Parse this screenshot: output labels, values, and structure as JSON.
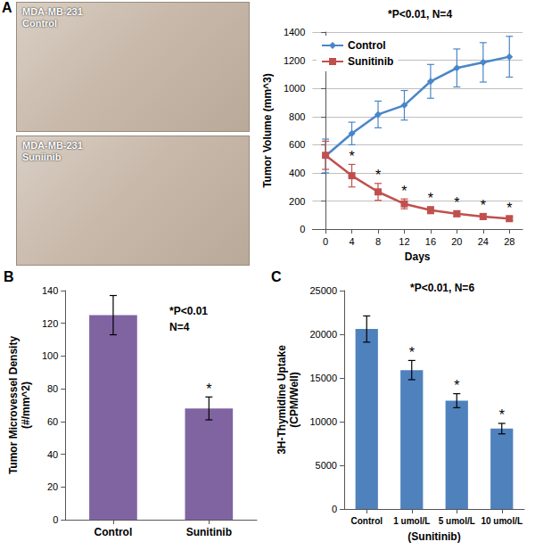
{
  "photos": {
    "panel_label": "A",
    "items": [
      {
        "lines": [
          "MDA-MB-231",
          "Control"
        ]
      },
      {
        "lines": [
          "MDA-MB-231",
          "Suniinib"
        ]
      }
    ]
  },
  "chart_data": [
    {
      "panel_label": "",
      "type": "line",
      "x_label": "Days",
      "y_label": "Tumor Volume (mm^3)",
      "annotation": "*P<0.01, N=4",
      "x": [
        0,
        4,
        8,
        12,
        16,
        20,
        24,
        28
      ],
      "series": [
        {
          "name": "Control",
          "color": "#4a86c8",
          "marker": "diamond",
          "values": [
            520,
            680,
            815,
            880,
            1050,
            1145,
            1185,
            1225
          ],
          "errors": [
            120,
            80,
            95,
            105,
            120,
            135,
            140,
            145
          ]
        },
        {
          "name": "Sunitinib",
          "color": "#c0504d",
          "marker": "square",
          "values": [
            525,
            380,
            265,
            180,
            135,
            110,
            90,
            75
          ],
          "errors": [
            100,
            80,
            60,
            35,
            25,
            20,
            20,
            15
          ],
          "significance": [
            null,
            "*",
            "*",
            "*",
            "*",
            "*",
            "*",
            "*"
          ]
        }
      ],
      "xlim": [
        -2,
        30
      ],
      "xticks": [
        0,
        4,
        8,
        12,
        16,
        20,
        24,
        28
      ],
      "ylim": [
        0,
        1400
      ],
      "yticks": [
        0,
        200,
        400,
        600,
        800,
        1000,
        1200,
        1400
      ],
      "grid": true,
      "legend": "upper left"
    },
    {
      "panel_label": "B",
      "type": "bar",
      "y_label": "Tumor Microvessel Density\n(#/mm^2)",
      "annotation": "*P<0.01\nN=4",
      "categories": [
        "Control",
        "Sunitinib"
      ],
      "values": [
        125,
        68
      ],
      "errors": [
        12,
        7
      ],
      "significance": [
        null,
        "*"
      ],
      "color": "#8064a2",
      "ylim": [
        0,
        140
      ],
      "yticks": [
        0,
        20,
        40,
        60,
        80,
        100,
        120,
        140
      ],
      "grid": false
    },
    {
      "panel_label": "C",
      "type": "bar",
      "x_label": "(Sunitinib)",
      "y_label": "3H-Thymidine Uptake\n(CPM/Well)",
      "annotation": "*P<0.01, N=6",
      "categories": [
        "Control",
        "1 umol/L",
        "5 umol/L",
        "10 umol/L"
      ],
      "values": [
        20600,
        15900,
        12400,
        9200
      ],
      "errors": [
        1500,
        1100,
        800,
        600
      ],
      "significance": [
        null,
        "*",
        "*",
        "*"
      ],
      "color": "#4f81bd",
      "ylim": [
        0,
        25000
      ],
      "yticks": [
        0,
        5000,
        10000,
        15000,
        20000,
        25000
      ],
      "grid": false
    }
  ]
}
